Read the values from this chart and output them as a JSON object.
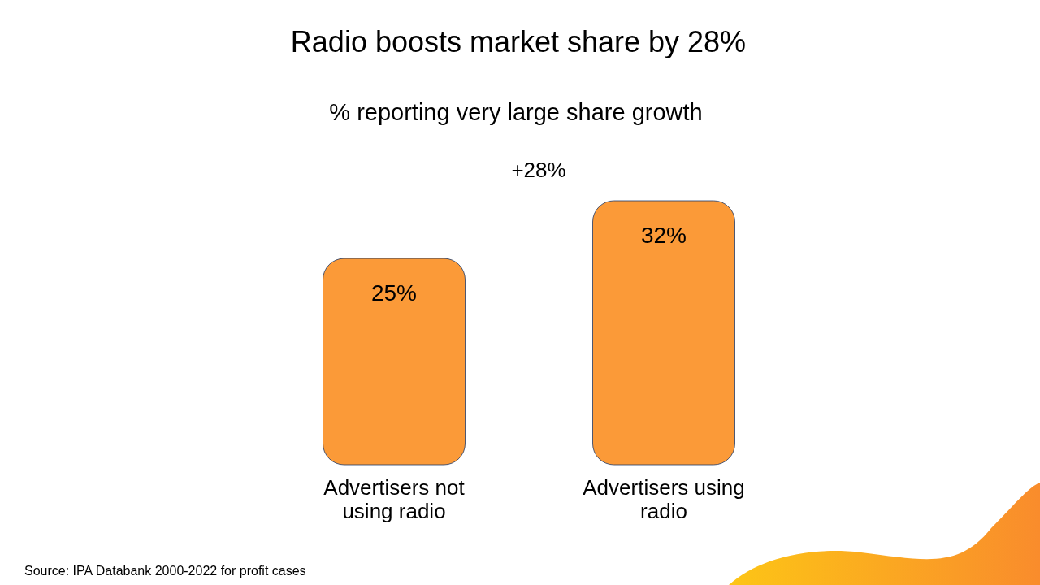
{
  "chart_data": {
    "type": "bar",
    "title": "Radio boosts market share by 28%",
    "subtitle": "% reporting very large share growth",
    "categories": [
      "Advertisers not using radio",
      "Advertisers using radio"
    ],
    "values": [
      25,
      32
    ],
    "color": "#fb9a38",
    "data_labels": true,
    "value_labels": [
      "25%",
      "32%"
    ],
    "annotations": [
      "+28%",
      "Source: IPA Databank 2000-2022 for profit cases"
    ]
  }
}
